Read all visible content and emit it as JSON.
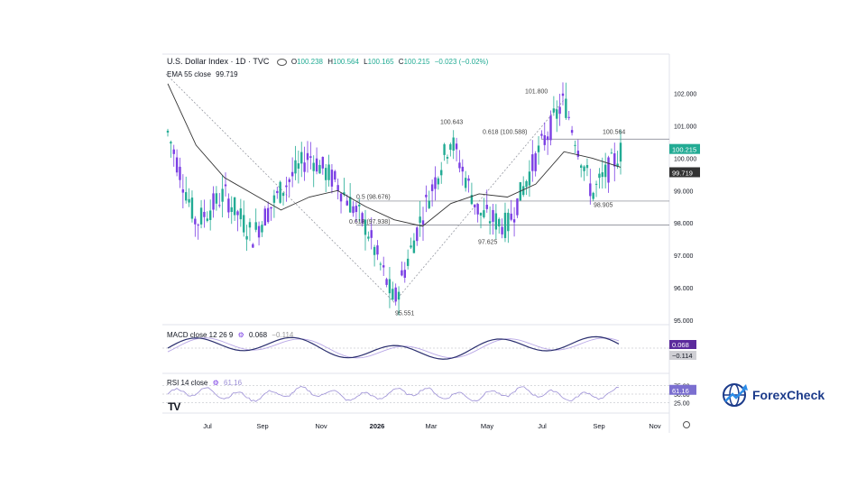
{
  "legend": {
    "title": "U.S. Dollar Index · 1D · TVC",
    "o_label": "O",
    "o": "100.238",
    "h_label": "H",
    "h": "100.564",
    "l_label": "L",
    "l": "100.165",
    "c_label": "C",
    "c": "100.215",
    "change": "−0.023 (−0.02%)",
    "ema_label": "EMA 55 close",
    "ema_value": "99.719",
    "macd_label": "MACD close 12 26 9",
    "macd_v1": "0.068",
    "macd_v2": "−0.114",
    "rsi_label": "RSI 14 close",
    "rsi_value": "61.16"
  },
  "brand": {
    "name": "ForexCheck"
  },
  "colors": {
    "up": "#22ab94",
    "down": "#7b3fe4",
    "macd": "#2a2e6e",
    "signal": "#b8a7e6",
    "rsi": "#9c8fd6",
    "price_tag": "#22ab94",
    "ema_tag": "#333333",
    "macd_tag": "#5b2a9c"
  },
  "chart_data": {
    "type": "line",
    "title": "U.S. Dollar Index · 1D · TVC",
    "x_axis": {
      "ticks": [
        "Jul",
        "Sep",
        "Nov",
        "2026",
        "Mar",
        "May",
        "Jul",
        "Sep",
        "Nov"
      ]
    },
    "price_axis": {
      "ticks": [
        "102.000",
        "101.000",
        "100.000",
        "99.000",
        "98.000",
        "97.000",
        "96.000",
        "95.000"
      ],
      "range": [
        95,
        102.6
      ]
    },
    "current_price": "100.215",
    "ema_value": "99.719",
    "series": [
      {
        "name": "DXY",
        "x": [
          "Jun",
          "Jul",
          "Aug",
          "Sep",
          "Oct",
          "Nov",
          "Dec",
          "2026",
          "Jan-mid",
          "Feb",
          "Mar",
          "Apr",
          "May",
          "Jun",
          "Jul",
          "Aug",
          "Sep"
        ],
        "y": [
          100.8,
          98.0,
          98.9,
          97.6,
          99.0,
          100.1,
          99.2,
          97.9,
          95.55,
          98.3,
          100.6,
          98.3,
          97.9,
          100.0,
          101.8,
          98.9,
          100.2
        ]
      },
      {
        "name": "EMA 55 close",
        "x": [
          "Jun",
          "Jul",
          "Aug",
          "Sep",
          "Oct",
          "Nov",
          "Dec",
          "2026",
          "Jan-mid",
          "Feb",
          "Mar",
          "Apr",
          "May",
          "Jun",
          "Jul",
          "Aug",
          "Sep"
        ],
        "y": [
          102.3,
          100.4,
          99.4,
          98.9,
          98.4,
          98.8,
          99.0,
          98.5,
          98.1,
          97.9,
          98.6,
          98.9,
          98.8,
          99.2,
          100.2,
          100.0,
          99.72
        ]
      }
    ],
    "annotations": [
      {
        "text": "101.800"
      },
      {
        "text": "100.643"
      },
      {
        "text": "0.618 (100.588)"
      },
      {
        "text": "100.564"
      },
      {
        "text": "0.5 (98.676)"
      },
      {
        "text": "0.618 (97.938)"
      },
      {
        "text": "98.905"
      },
      {
        "text": "97.625"
      },
      {
        "text": "95.551"
      }
    ],
    "levels": [
      100.588,
      98.676,
      97.938
    ],
    "macd": {
      "label": "MACD close 12 26 9",
      "values": [
        "0.068",
        "−0.114"
      ]
    },
    "rsi": {
      "label": "RSI 14 close",
      "value": "61.16",
      "ticks": [
        "75.00",
        "50.00",
        "25.00"
      ]
    }
  }
}
